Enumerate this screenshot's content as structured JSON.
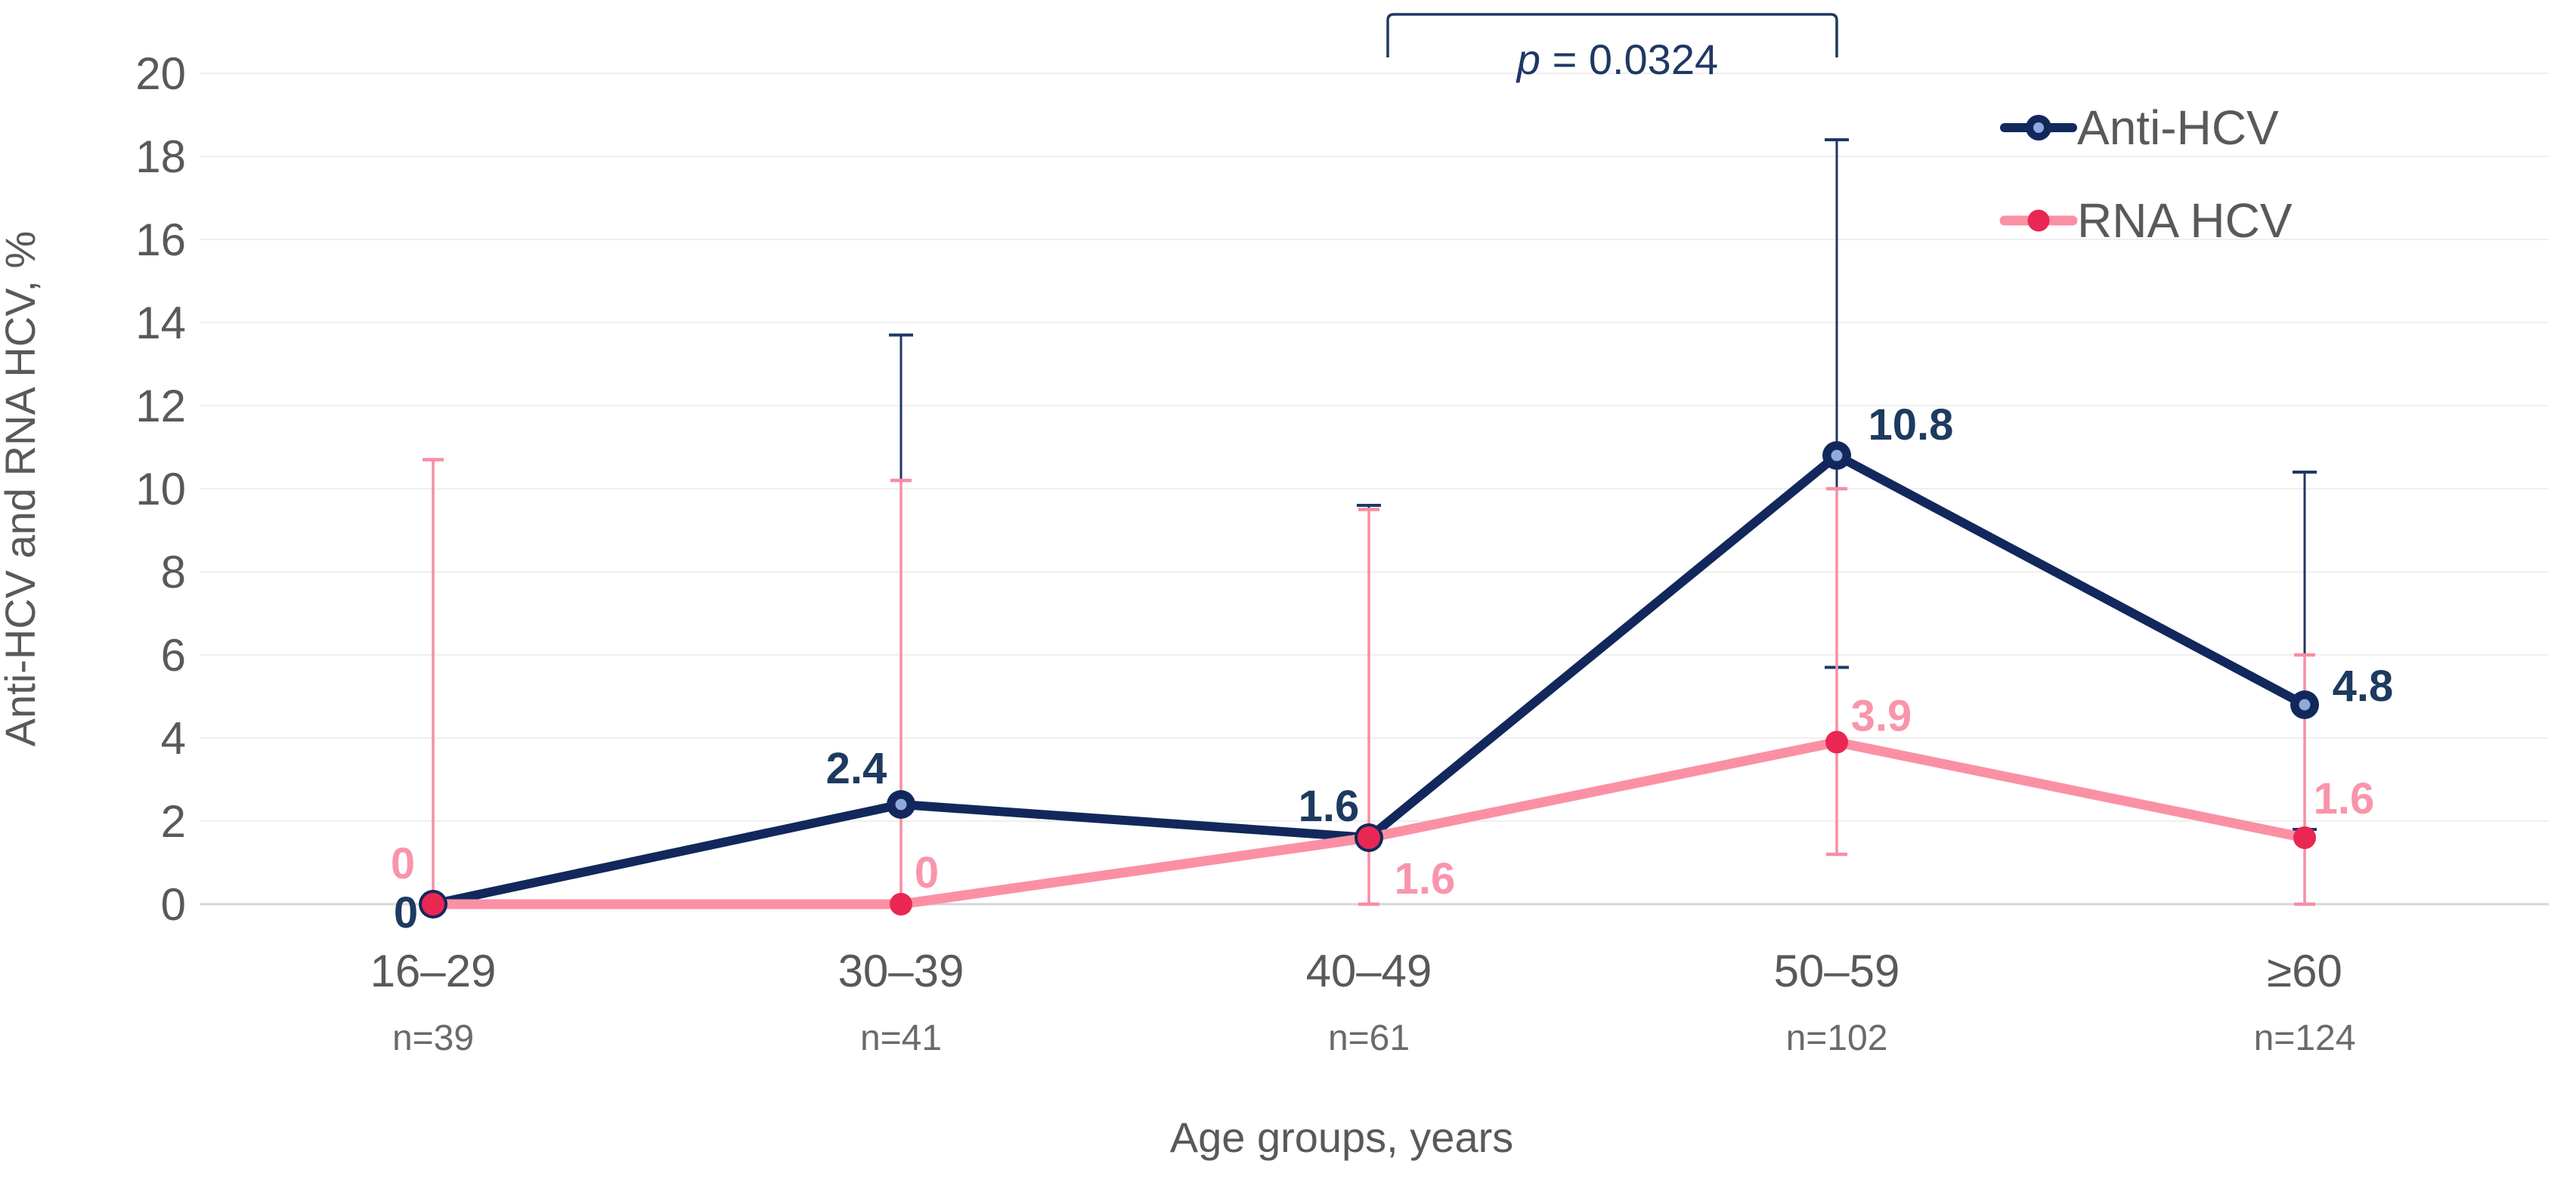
{
  "chart_data": {
    "type": "line",
    "title": "",
    "xlabel": "Age groups, years",
    "ylabel": "Anti-HCV and RNA HCV, %",
    "ylim": [
      0,
      20
    ],
    "ytick_step": 2,
    "grid": true,
    "legend_position": "top-right",
    "categories": [
      "16–29",
      "30–39",
      "40–49",
      "50–59",
      "≥60"
    ],
    "sample_sizes": [
      "n=39",
      "n=41",
      "n=61",
      "n=102",
      "n=124"
    ],
    "series": [
      {
        "name": "Anti-HCV",
        "color": "#12285c",
        "marker": "ring",
        "marker_inner_color": "#8faadc",
        "error_color": "#1f3864",
        "label_color": "#1d3a60",
        "values": [
          0,
          2.4,
          1.6,
          10.8,
          4.8
        ],
        "err_low": [
          null,
          null,
          null,
          5.7,
          1.8
        ],
        "err_high": [
          null,
          13.7,
          9.6,
          18.4,
          10.4
        ],
        "point_labels": [
          "0",
          "2.4",
          "1.6",
          "10.8",
          "4.8"
        ]
      },
      {
        "name": "RNA HCV",
        "color": "#fb90a5",
        "marker": "dot",
        "marker_inner_color": "#e92752",
        "error_color": "#f78da4",
        "label_color": "#f995ab",
        "values": [
          0,
          0,
          1.6,
          3.9,
          1.6
        ],
        "err_low": [
          null,
          null,
          0,
          1.2,
          0
        ],
        "err_high": [
          10.7,
          10.2,
          9.5,
          10.0,
          6.0
        ],
        "point_labels": [
          "0",
          "0",
          "1.6",
          "3.9",
          "1.6"
        ]
      }
    ],
    "annotation": {
      "label": "p = 0.0324",
      "italic_part": "p",
      "rest_part": " = 0.0324",
      "from_category": "40–49",
      "to_category": "50–59",
      "color": "#1f3864"
    },
    "label_offsets": [
      [
        [
          -36,
          11
        ],
        [
          -59,
          -48
        ],
        [
          -53,
          -42
        ],
        [
          98,
          -41
        ],
        [
          77,
          -25
        ]
      ],
      [
        [
          -40,
          -54
        ],
        [
          34,
          -42
        ],
        [
          74,
          54
        ],
        [
          59,
          -35
        ],
        [
          52,
          -52
        ]
      ]
    ],
    "colors": {
      "grid": "#efefef",
      "axis_line": "#d6d6d9",
      "tick_text": "#595959",
      "n_text": "#6a6a6a",
      "axis_title": "#595959",
      "legend_text": "#595959",
      "background": "#ffffff"
    }
  }
}
